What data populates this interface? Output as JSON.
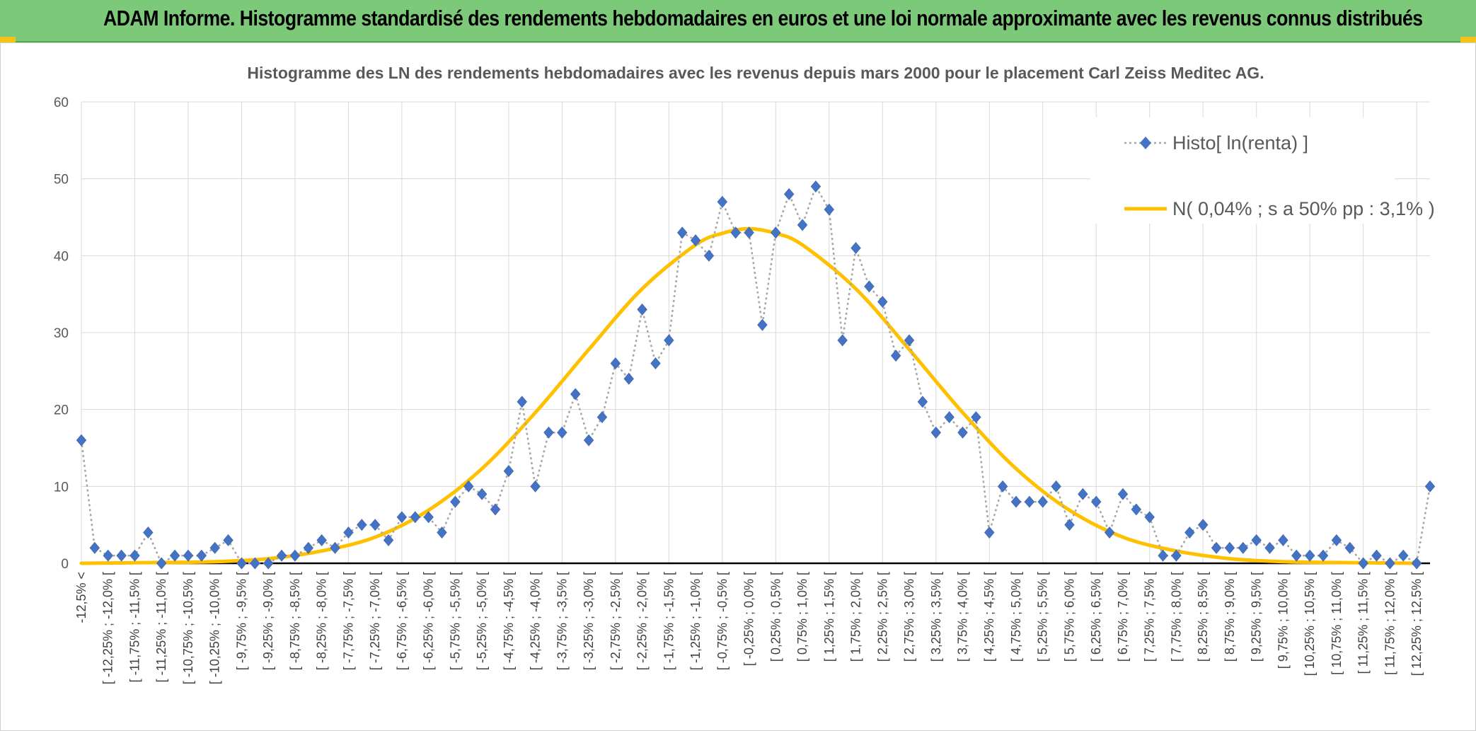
{
  "banner": {
    "title": "ADAM Informe. Histogramme standardisé des rendements hebdomadaires en euros et une loi normale approximante avec les revenus connus distribués"
  },
  "colors": {
    "banner_bg": "#7dc97a",
    "corner_accent": "#f4c316",
    "histo_marker": "#4472c4",
    "histo_line": "#a6a6a6",
    "normal_curve": "#ffc000",
    "grid": "#d9d9d9",
    "axis": "#000000"
  },
  "chart_data": {
    "type": "line",
    "title": "Histogramme des LN des rendements hebdomadaires avec les revenus depuis mars 2000 pour le placement Carl Zeiss Meditec AG.",
    "xlabel": "",
    "ylabel": "",
    "ylim": [
      0,
      60
    ],
    "y_ticks": [
      0,
      10,
      20,
      30,
      40,
      50,
      60
    ],
    "grid": true,
    "legend_position": "top-right",
    "tick_labels": [
      "-12,5% <",
      "[ -12,25% ; -12,0% [",
      "[ -11,75% ; -11,5% [",
      "[ -11,25% ; -11,0% [",
      "[ -10,75% ; -10,5% [",
      "[ -10,25% ; -10,0% [",
      "[ -9,75% ; -9,5% [",
      "[ -9,25% ; -9,0% [",
      "[ -8,75% ; -8,5% [",
      "[ -8,25% ; -8,0% [",
      "[ -7,75% ; -7,5% [",
      "[ -7,25% ; -7,0% [",
      "[ -6,75% ; -6,5% [",
      "[ -6,25% ; -6,0% [",
      "[ -5,75% ; -5,5% [",
      "[ -5,25% ; -5,0% [",
      "[ -4,75% ; -4,5% [",
      "[ -4,25% ; -4,0% [",
      "[ -3,75% ; -3,5% [",
      "[ -3,25% ; -3,0% [",
      "[ -2,75% ; -2,5% [",
      "[ -2,25% ; -2,0% [",
      "[ -1,75% ; -1,5% [",
      "[ -1,25% ; -1,0% [",
      "[ -0,75% ; -0,5% [",
      "[ -0,25% ; 0,0% [",
      "[ 0,25% ; 0,5% [",
      "[ 0,75% ; 1,0% [",
      "[ 1,25% ; 1,5% [",
      "[ 1,75% ; 2,0% [",
      "[ 2,25% ; 2,5% [",
      "[ 2,75% ; 3,0% [",
      "[ 3,25% ; 3,5% [",
      "[ 3,75% ; 4,0% [",
      "[ 4,25% ; 4,5% [",
      "[ 4,75% ; 5,0% [",
      "[ 5,25% ; 5,5% [",
      "[ 5,75% ; 6,0% [",
      "[ 6,25% ; 6,5% [",
      "[ 6,75% ; 7,0% [",
      "[ 7,25% ; 7,5% [",
      "[ 7,75% ; 8,0% [",
      "[ 8,25% ; 8,5% [",
      "[ 8,75% ; 9,0% [",
      "[ 9,25% ; 9,5% [",
      "[ 9,75% ; 10,0% [",
      "[ 10,25% ; 10,5% [",
      "[ 10,75% ; 11,0% [",
      "[ 11,25% ; 11,5% [",
      "[ 11,75% ; 12,0% [",
      "[ 12,25% ; 12,5% ["
    ],
    "series": [
      {
        "name": "Histo[ ln(renta) ]",
        "style": "dotted-line-with-diamond-markers",
        "values": [
          16,
          2,
          1,
          1,
          1,
          4,
          0,
          1,
          1,
          1,
          2,
          3,
          0,
          0,
          0,
          1,
          1,
          2,
          3,
          2,
          4,
          5,
          5,
          3,
          6,
          6,
          6,
          4,
          8,
          10,
          9,
          7,
          12,
          21,
          10,
          17,
          17,
          22,
          16,
          19,
          26,
          24,
          33,
          26,
          29,
          43,
          42,
          40,
          47,
          43,
          43,
          31,
          43,
          48,
          44,
          49,
          46,
          29,
          41,
          36,
          34,
          27,
          29,
          21,
          17,
          19,
          17,
          19,
          4,
          10,
          8,
          8,
          8,
          10,
          5,
          9,
          8,
          4,
          9,
          7,
          6,
          1,
          1,
          4,
          5,
          2,
          2,
          2,
          3,
          2,
          3,
          1,
          1,
          1,
          3,
          2,
          0,
          1,
          0,
          1,
          0,
          10
        ]
      },
      {
        "name": "N( 0,04% ; s a 50% pp : 3,1% )",
        "style": "smooth-curve",
        "distribution": {
          "type": "normal",
          "mean_pct": 0.04,
          "sd_pct": 3.1,
          "peak": 43.5
        },
        "x_pct": [
          -12.5,
          -11.0,
          -10.0,
          -9.0,
          -8.0,
          -7.0,
          -6.0,
          -5.0,
          -4.0,
          -3.0,
          -2.0,
          -1.0,
          -0.5,
          0.0,
          0.5,
          1.0,
          2.0,
          3.0,
          4.0,
          5.0,
          6.0,
          7.0,
          8.0,
          9.0,
          10.0,
          11.0,
          12.5
        ],
        "values": [
          0.0,
          0.1,
          0.2,
          0.6,
          1.6,
          3.4,
          6.9,
          12.3,
          19.6,
          27.8,
          35.7,
          41.4,
          42.9,
          43.5,
          42.9,
          41.4,
          35.7,
          27.8,
          19.6,
          12.3,
          6.9,
          3.4,
          1.6,
          0.6,
          0.2,
          0.1,
          0.0
        ]
      }
    ]
  }
}
